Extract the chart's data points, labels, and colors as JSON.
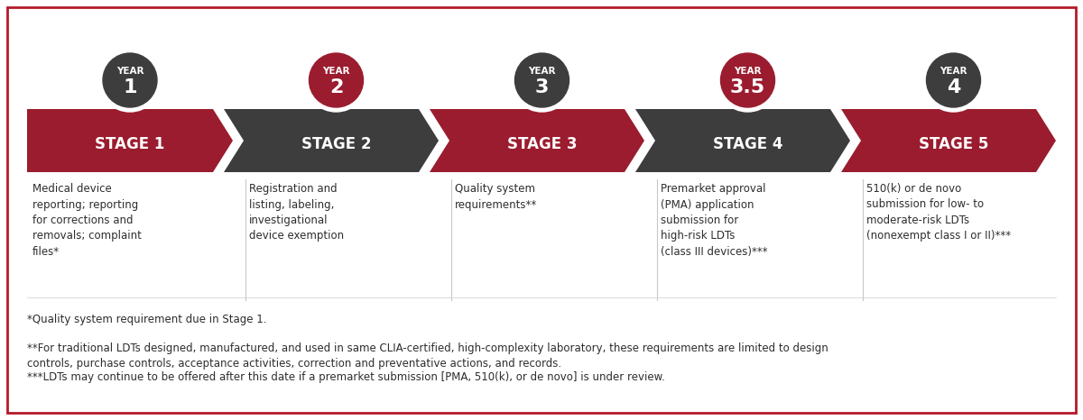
{
  "background_color": "#ffffff",
  "border_color": "#b5192a",
  "stages": [
    {
      "label": "STAGE 1",
      "year_line1": "YEAR",
      "year_line2": "1",
      "arrow_color": "#9b1c2e",
      "circle_color": "#3d3d3d"
    },
    {
      "label": "STAGE 2",
      "year_line1": "YEAR",
      "year_line2": "2",
      "arrow_color": "#3d3d3d",
      "circle_color": "#9b1c2e"
    },
    {
      "label": "STAGE 3",
      "year_line1": "YEAR",
      "year_line2": "3",
      "arrow_color": "#9b1c2e",
      "circle_color": "#3d3d3d"
    },
    {
      "label": "STAGE 4",
      "year_line1": "YEAR",
      "year_line2": "3.5",
      "arrow_color": "#3d3d3d",
      "circle_color": "#9b1c2e"
    },
    {
      "label": "STAGE 5",
      "year_line1": "YEAR",
      "year_line2": "4",
      "arrow_color": "#9b1c2e",
      "circle_color": "#3d3d3d"
    }
  ],
  "descriptions": [
    "Medical device\nreporting; reporting\nfor corrections and\nremovals; complaint\nfiles*",
    "Registration and\nlisting, labeling,\ninvestigational\ndevice exemption",
    "Quality system\nrequirements**",
    "Premarket approval\n(PMA) application\nsubmission for\nhigh-risk LDTs\n(class III devices)***",
    "510(k) or de novo\nsubmission for low- to\nmoderate-risk LDTs\n(nonexempt class I or II)***"
  ],
  "footnotes": [
    "*Quality system requirement due in Stage 1.",
    "**For traditional LDTs designed, manufactured, and used in same CLIA-certified, high-complexity laboratory, these requirements are limited to design\ncontrols, purchase controls, acceptance activities, correction and preventative actions, and records.",
    "***LDTs may continue to be offered after this date if a premarket submission [PMA, 510(k), or de novo] is under review."
  ],
  "stage_label_color": "#ffffff",
  "stage_label_fontsize": 12,
  "year_label_fontsize": 7.5,
  "year_number_fontsize": 16,
  "desc_fontsize": 8.5,
  "footnote_fontsize": 8.5
}
